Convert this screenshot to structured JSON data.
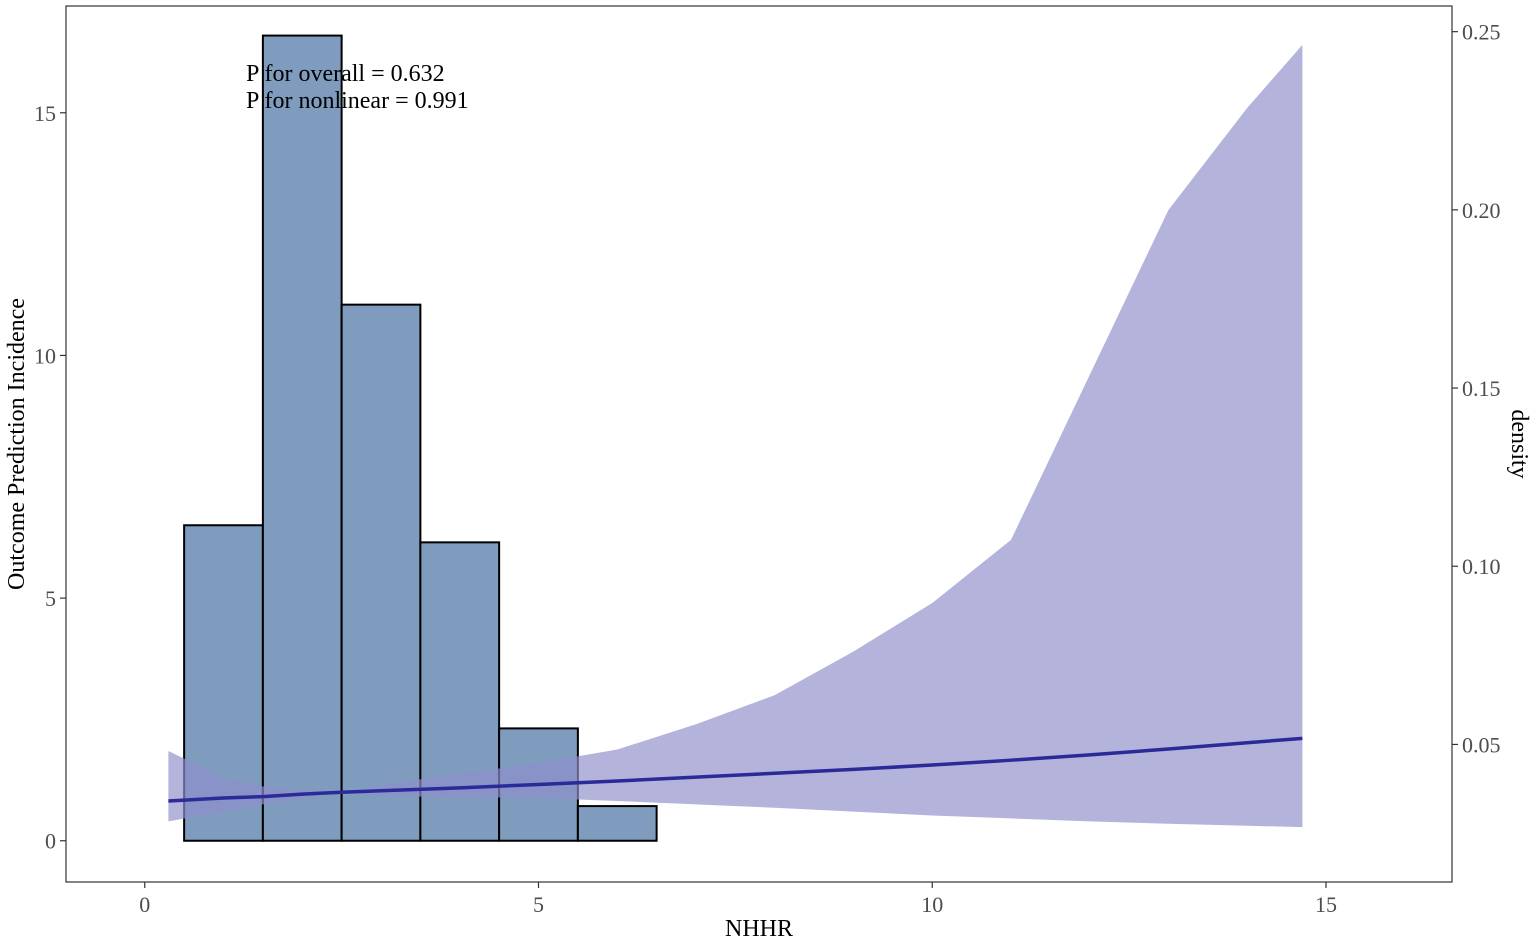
{
  "chart_data": {
    "type": "bar",
    "subtype": "histogram with restricted cubic spline curve",
    "xlabel": "NHHR",
    "ylabel": "Outcome Prediction Incidence",
    "y2label": "density",
    "xlim": [
      -1,
      16.6
    ],
    "ylim": [
      -0.85,
      17.2
    ],
    "y2lim": [
      0.0114,
      0.2572
    ],
    "x_ticks": [
      0,
      5,
      10,
      15
    ],
    "y_ticks": [
      0,
      5,
      10,
      15
    ],
    "y2_ticks": [
      "0.05",
      "0.10",
      "0.15",
      "0.20",
      "0.25"
    ],
    "y2_tick_values": [
      0.05,
      0.1,
      0.15,
      0.2,
      0.25
    ],
    "grid": false,
    "annotations": [
      "P for overall = 0.632",
      "P for nonlinear = 0.991"
    ],
    "histogram": {
      "bin_width": 1,
      "bin_edges": [
        -0.5,
        0.5,
        1.5,
        2.5,
        3.5,
        4.5,
        5.5,
        6.5,
        7.5,
        8.5,
        9.5,
        10.5,
        11.5,
        12.5,
        13.5,
        14.5,
        15.5
      ],
      "density": [
        0.0167,
        0.1115,
        0.2489,
        0.1734,
        0.1067,
        0.0545,
        0.0327,
        0.019,
        0.0183,
        0.018,
        0.018,
        0.0176,
        0.0174,
        0.0174,
        0.0174,
        0.0178
      ],
      "fill": "#7f9cbf",
      "stroke": "#000000"
    },
    "series": [
      {
        "name": "",
        "x": [
          0.3,
          1.0,
          1.5,
          2.0,
          2.5,
          3.0,
          4.0,
          5.0,
          6.0,
          7.0,
          8.0,
          9.0,
          10.0,
          11.0,
          12.0,
          13.0,
          14.0,
          14.7
        ],
        "y": [
          0.82,
          0.88,
          0.91,
          0.96,
          1.0,
          1.03,
          1.09,
          1.16,
          1.23,
          1.31,
          1.39,
          1.47,
          1.56,
          1.66,
          1.77,
          1.89,
          2.02,
          2.11
        ],
        "lower": [
          0.4,
          0.6,
          0.75,
          0.88,
          1.0,
          0.92,
          0.9,
          0.88,
          0.82,
          0.75,
          0.68,
          0.6,
          0.52,
          0.46,
          0.4,
          0.35,
          0.31,
          0.28
        ],
        "upper": [
          1.85,
          1.3,
          1.12,
          1.04,
          1.0,
          1.15,
          1.38,
          1.6,
          1.88,
          2.4,
          3.0,
          3.9,
          4.9,
          6.2,
          9.6,
          13.0,
          15.1,
          16.4
        ],
        "line_color": "#2a2a9a",
        "band_color": "#8f8fcb"
      }
    ]
  }
}
